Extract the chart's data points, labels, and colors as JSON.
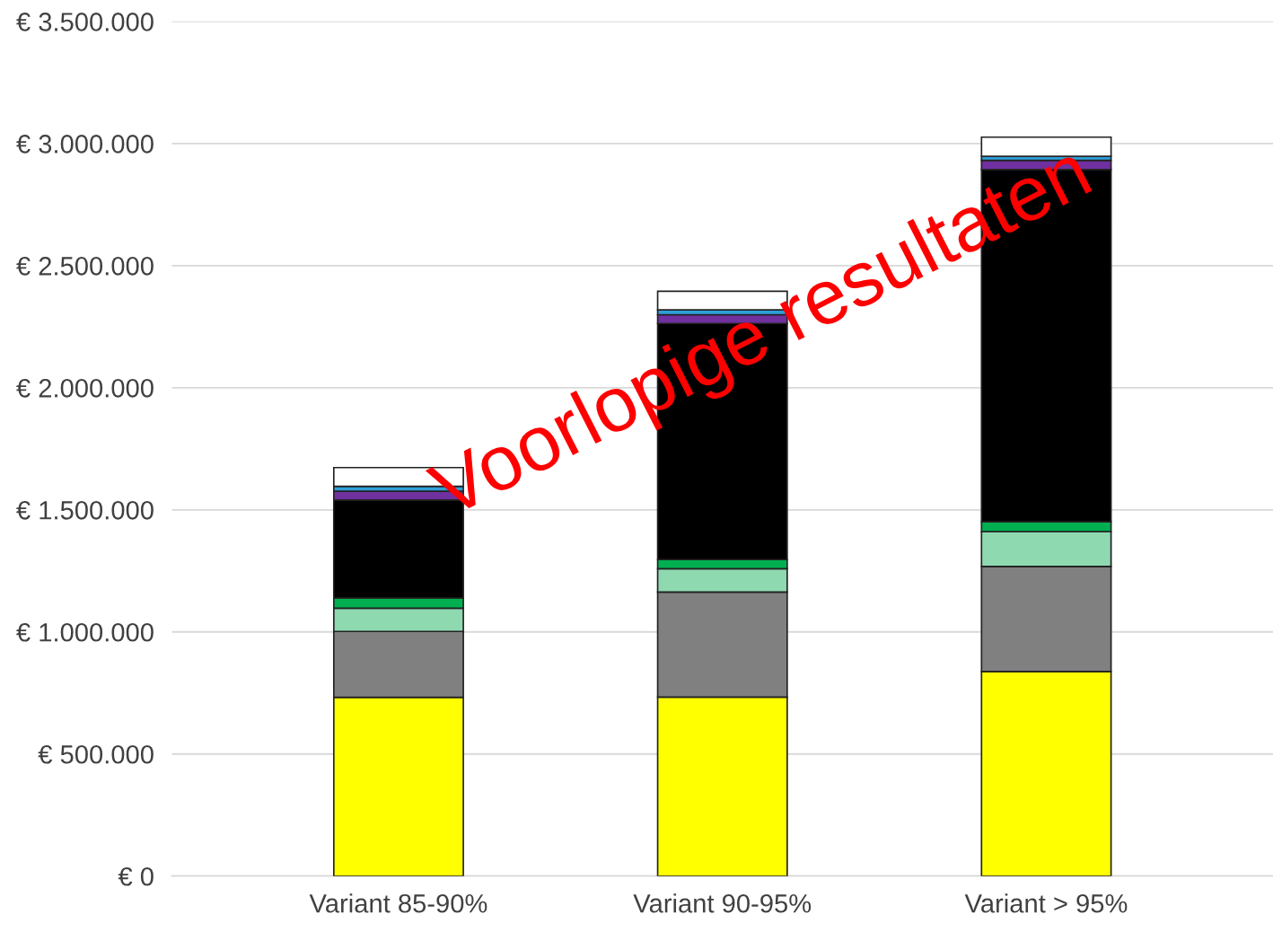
{
  "chart_data": {
    "type": "bar",
    "stacked": true,
    "categories": [
      "Variant 85-90%",
      "Variant 90-95%",
      "Variant > 95%"
    ],
    "series": [
      {
        "color": "#ffff00",
        "values": [
          732000,
          733000,
          838000
        ]
      },
      {
        "color": "#808080",
        "values": [
          270000,
          430000,
          430000
        ]
      },
      {
        "color": "#8fd9b0",
        "values": [
          95000,
          96000,
          143000
        ]
      },
      {
        "color": "#00b050",
        "values": [
          42000,
          37000,
          40000
        ]
      },
      {
        "color": "#000000",
        "values": [
          401000,
          967000,
          1442000
        ]
      },
      {
        "color": "#7030a0",
        "values": [
          36000,
          36000,
          38000
        ]
      },
      {
        "color": "#2e9fd8",
        "values": [
          20000,
          20000,
          17000
        ]
      },
      {
        "color": "#ffffff",
        "values": [
          77000,
          76000,
          78000
        ]
      }
    ],
    "ylim": [
      0,
      3500000
    ],
    "yticks": [
      {
        "value": 0,
        "label": "€ 0"
      },
      {
        "value": 500000,
        "label": "€ 500.000"
      },
      {
        "value": 1000000,
        "label": "€ 1.000.000"
      },
      {
        "value": 1500000,
        "label": "€ 1.500.000"
      },
      {
        "value": 2000000,
        "label": "€ 2.000.000"
      },
      {
        "value": 2500000,
        "label": "€ 2.500.000"
      },
      {
        "value": 3000000,
        "label": "€ 3.000.000"
      },
      {
        "value": 3500000,
        "label": "€ 3.500.000"
      }
    ],
    "grid": "y",
    "annotations": [
      "Voorlopige resultaten"
    ]
  }
}
